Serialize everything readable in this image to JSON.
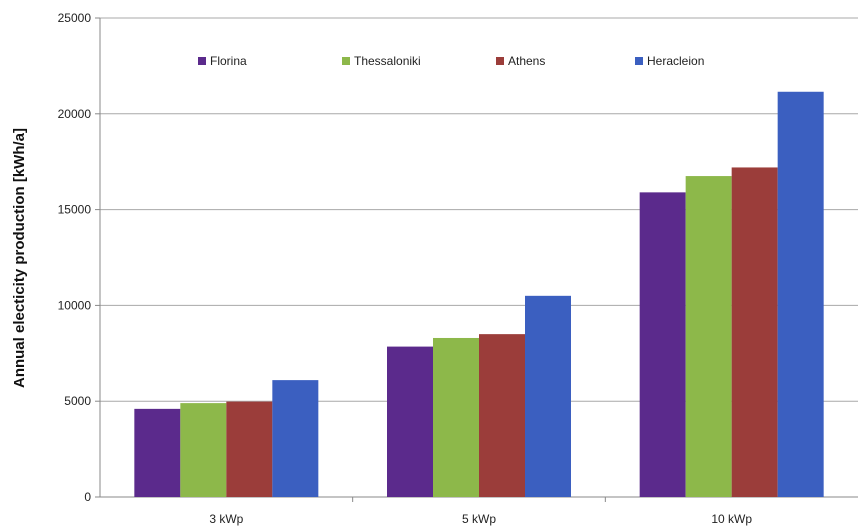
{
  "chart_data": {
    "type": "bar",
    "title": "",
    "xlabel": "",
    "ylabel": "Annual electicity production [kWh/a]",
    "categories": [
      "3 kWp",
      "5 kWp",
      "10 kWp"
    ],
    "series": [
      {
        "name": "Florina",
        "values": [
          4600,
          7850,
          15900
        ],
        "color": "#5b2a8c"
      },
      {
        "name": "Thessaloniki",
        "values": [
          4900,
          8300,
          16750
        ],
        "color": "#8db84a"
      },
      {
        "name": "Athens",
        "values": [
          4980,
          8500,
          17200
        ],
        "color": "#9b3d3a"
      },
      {
        "name": "Heracleion",
        "values": [
          6100,
          10500,
          21150
        ],
        "color": "#3b5fc0"
      }
    ],
    "ylim": [
      0,
      25000
    ],
    "yticks": [
      "0",
      "5000",
      "10000",
      "15000",
      "20000",
      "25000"
    ],
    "grid": true,
    "legend_position": "top"
  }
}
